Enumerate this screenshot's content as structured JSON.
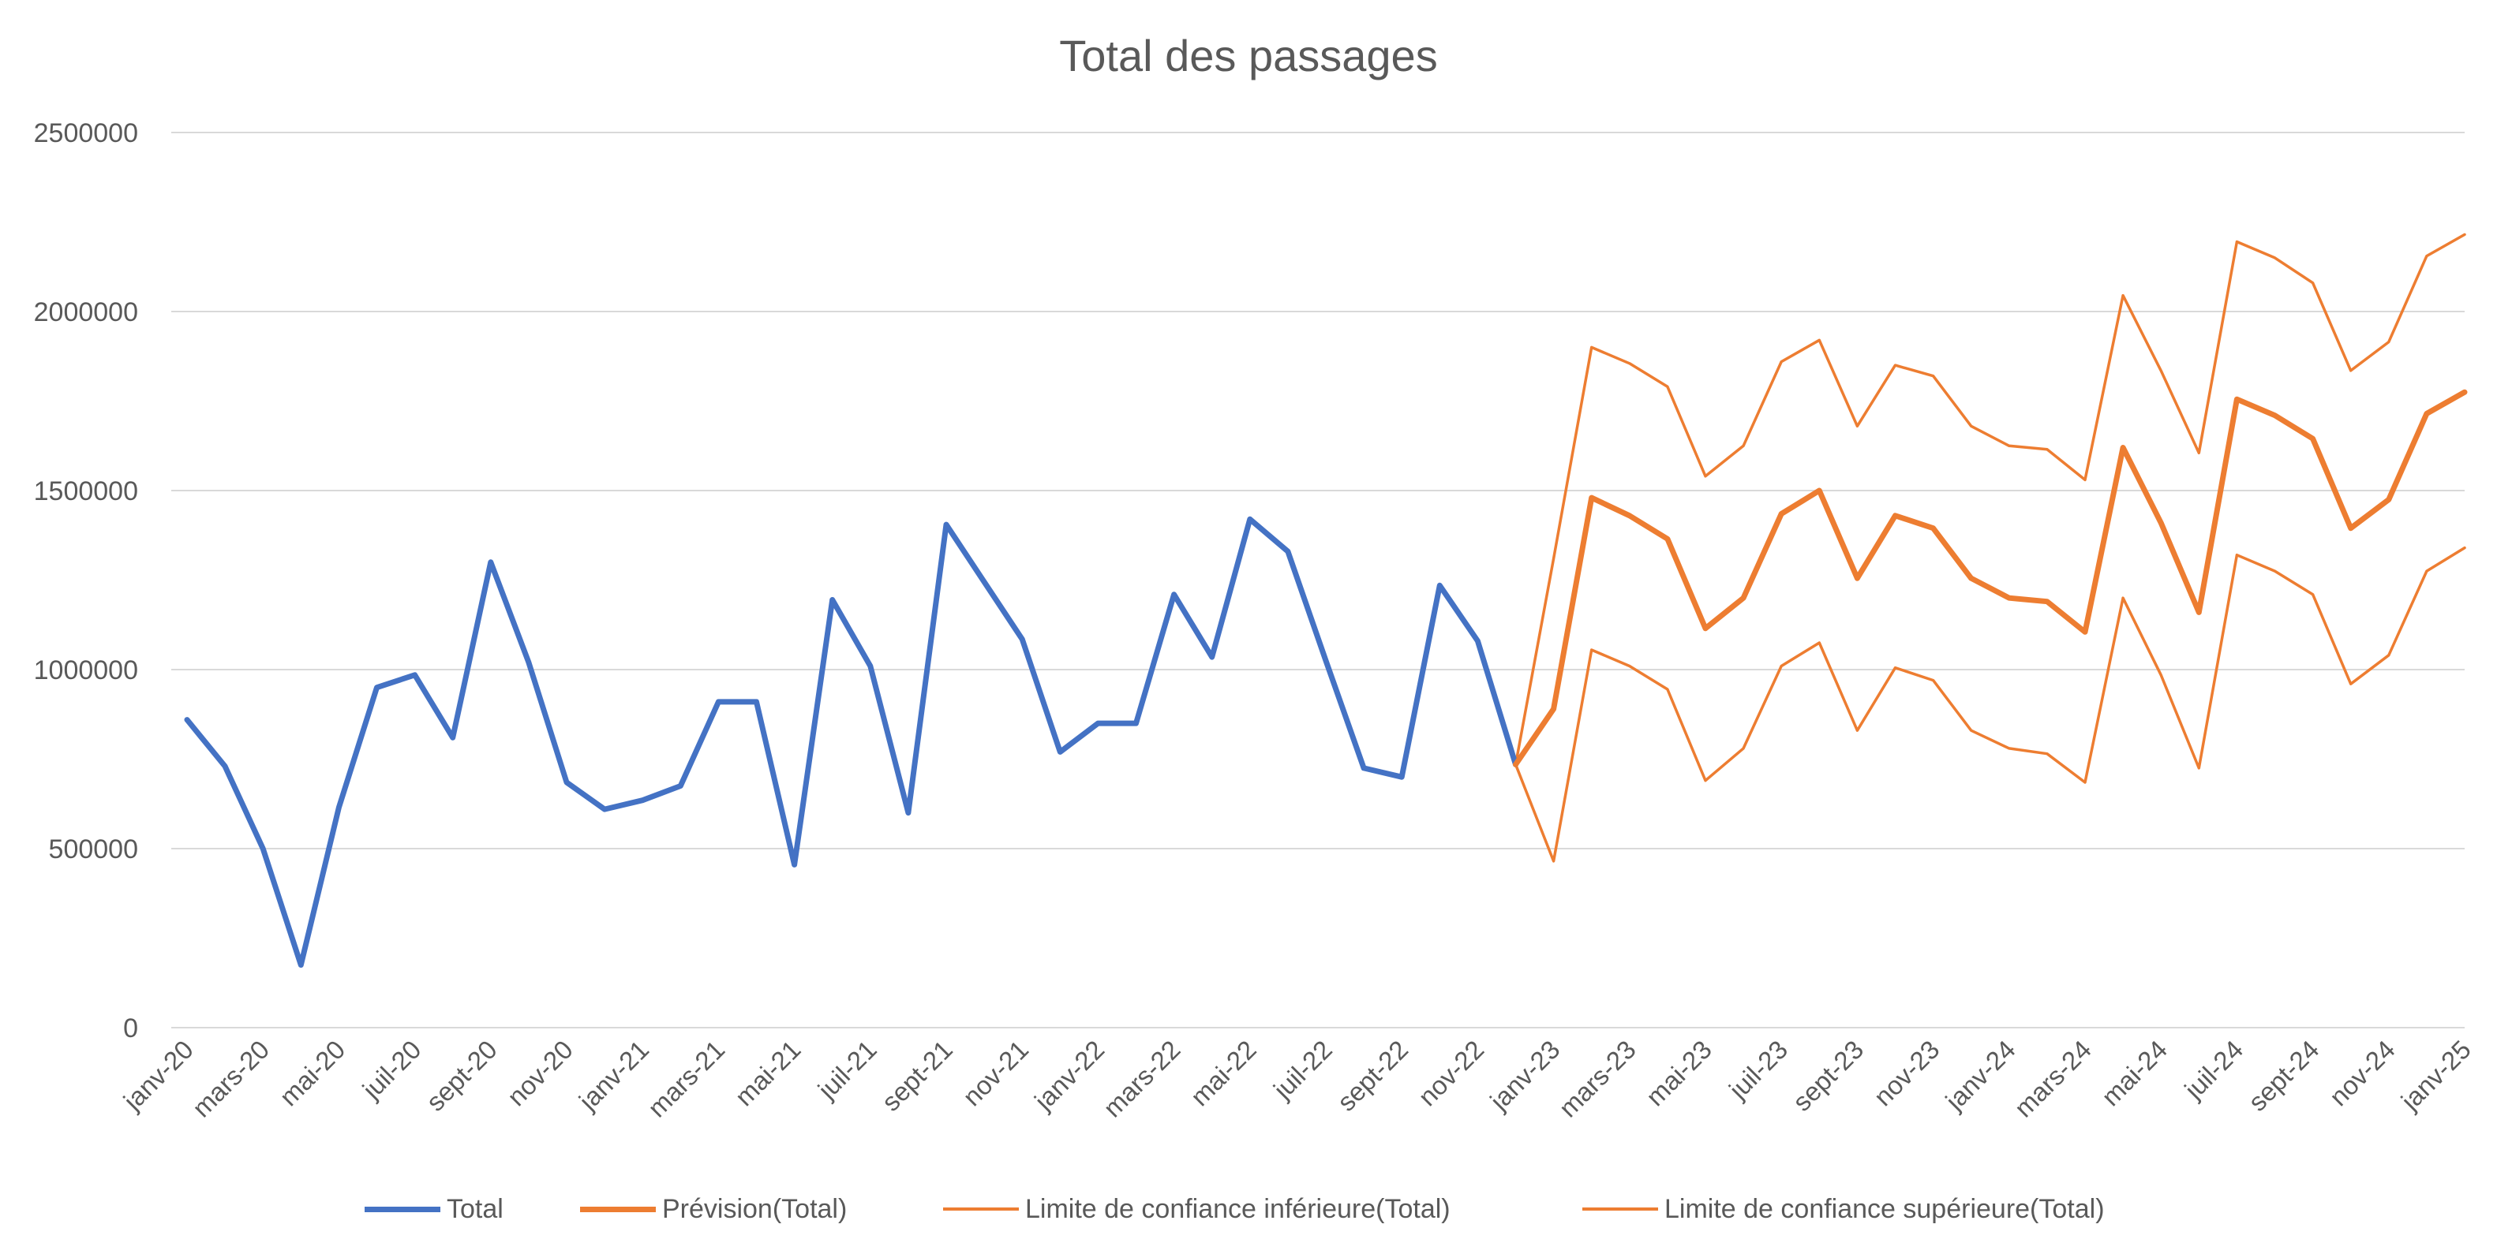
{
  "chart_data": {
    "type": "line",
    "title": "Total des passages",
    "xlabel": "",
    "ylabel": "",
    "ylim": [
      0,
      2500000
    ],
    "y_ticks": [
      0,
      500000,
      1000000,
      1500000,
      2000000,
      2500000
    ],
    "y_tick_labels": [
      "0",
      "500000",
      "1000000",
      "1500000",
      "2000000",
      "2500000"
    ],
    "grid": true,
    "legend_position": "bottom",
    "x": [
      "2020-01",
      "2020-02",
      "2020-03",
      "2020-04",
      "2020-05",
      "2020-06",
      "2020-07",
      "2020-08",
      "2020-09",
      "2020-10",
      "2020-11",
      "2020-12",
      "2021-01",
      "2021-02",
      "2021-03",
      "2021-04",
      "2021-05",
      "2021-06",
      "2021-07",
      "2021-08",
      "2021-09",
      "2021-10",
      "2021-11",
      "2021-12",
      "2022-01",
      "2022-02",
      "2022-03",
      "2022-04",
      "2022-05",
      "2022-06",
      "2022-07",
      "2022-08",
      "2022-09",
      "2022-10",
      "2022-11",
      "2022-12",
      "2023-01",
      "2023-02",
      "2023-03",
      "2023-04",
      "2023-05",
      "2023-06",
      "2023-07",
      "2023-08",
      "2023-09",
      "2023-10",
      "2023-11",
      "2023-12",
      "2024-01",
      "2024-02",
      "2024-03",
      "2024-04",
      "2024-05",
      "2024-06",
      "2024-07",
      "2024-08",
      "2024-09",
      "2024-10",
      "2024-11",
      "2024-12",
      "2025-01"
    ],
    "x_tick_labels": [
      "janv-20",
      "mars-20",
      "mai-20",
      "juil-20",
      "sept-20",
      "nov-20",
      "janv-21",
      "mars-21",
      "mai-21",
      "juil-21",
      "sept-21",
      "nov-21",
      "janv-22",
      "mars-22",
      "mai-22",
      "juil-22",
      "sept-22",
      "nov-22",
      "janv-23",
      "mars-23",
      "mai-23",
      "juil-23",
      "sept-23",
      "nov-23",
      "janv-24",
      "mars-24",
      "mai-24",
      "juil-24",
      "sept-24",
      "nov-24",
      "janv-25"
    ],
    "series": [
      {
        "name": "Total",
        "color": "#4472C4",
        "values": [
          860000,
          730000,
          500000,
          175000,
          615000,
          950000,
          985000,
          810000,
          1300000,
          1020000,
          685000,
          610000,
          635000,
          675000,
          910000,
          910000,
          455000,
          1195000,
          1010000,
          600000,
          1405000,
          1245000,
          1085000,
          770000,
          850000,
          850000,
          1210000,
          1035000,
          1420000,
          1330000,
          1025000,
          725000,
          700000,
          1235000,
          1080000,
          735000,
          null,
          null,
          null,
          null,
          null,
          null,
          null,
          null,
          null,
          null,
          null,
          null,
          null,
          null,
          null,
          null,
          null,
          null,
          null,
          null,
          null,
          null,
          null,
          null,
          null
        ]
      },
      {
        "name": "Prévision(Total)",
        "color": "#ED7D31",
        "values": [
          null,
          null,
          null,
          null,
          null,
          null,
          null,
          null,
          null,
          null,
          null,
          null,
          null,
          null,
          null,
          null,
          null,
          null,
          null,
          null,
          null,
          null,
          null,
          null,
          null,
          null,
          null,
          null,
          null,
          null,
          null,
          null,
          null,
          null,
          null,
          735000,
          890000,
          1480000,
          1430000,
          1365000,
          1115000,
          1200000,
          1435000,
          1500000,
          1255000,
          1430000,
          1395000,
          1255000,
          1200000,
          1190000,
          1105000,
          1620000,
          1410000,
          1160000,
          1755000,
          1710000,
          1645000,
          1395000,
          1475000,
          1715000,
          1775000
        ]
      },
      {
        "name": "Limite de confiance inférieure(Total)",
        "color": "#ED7D31",
        "values": [
          null,
          null,
          null,
          null,
          null,
          null,
          null,
          null,
          null,
          null,
          null,
          null,
          null,
          null,
          null,
          null,
          null,
          null,
          null,
          null,
          null,
          null,
          null,
          null,
          null,
          null,
          null,
          null,
          null,
          null,
          null,
          null,
          null,
          null,
          null,
          735000,
          465000,
          1055000,
          1010000,
          945000,
          690000,
          780000,
          1010000,
          1075000,
          830000,
          1005000,
          970000,
          830000,
          780000,
          765000,
          685000,
          1200000,
          985000,
          725000,
          1320000,
          1275000,
          1210000,
          960000,
          1040000,
          1275000,
          1340000
        ]
      },
      {
        "name": "Limite de confiance supérieure(Total)",
        "color": "#ED7D31",
        "values": [
          null,
          null,
          null,
          null,
          null,
          null,
          null,
          null,
          null,
          null,
          null,
          null,
          null,
          null,
          null,
          null,
          null,
          null,
          null,
          null,
          null,
          null,
          null,
          null,
          null,
          null,
          null,
          null,
          null,
          null,
          null,
          null,
          null,
          null,
          null,
          735000,
          1310000,
          1900000,
          1855000,
          1790000,
          1540000,
          1625000,
          1860000,
          1920000,
          1680000,
          1850000,
          1820000,
          1680000,
          1625000,
          1615000,
          1530000,
          2045000,
          1835000,
          1605000,
          2195000,
          2150000,
          2080000,
          1835000,
          1915000,
          2155000,
          2215000
        ]
      }
    ]
  }
}
